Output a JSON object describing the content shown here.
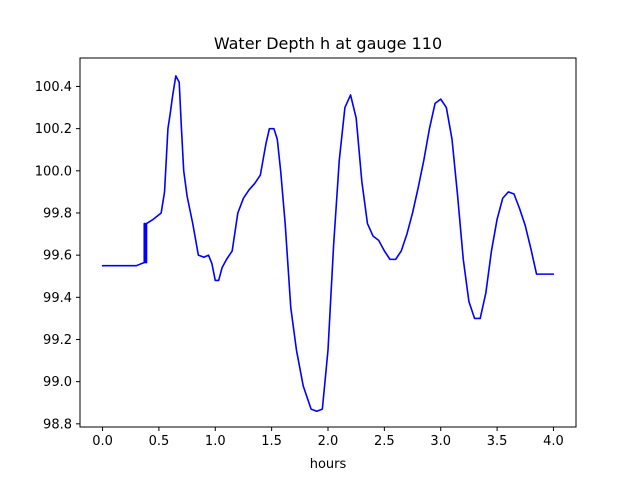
{
  "chart_data": {
    "type": "line",
    "title": "Water Depth h at gauge 110",
    "xlabel": "hours",
    "ylabel": "",
    "xlim": [
      -0.2,
      4.2
    ],
    "ylim": [
      98.785,
      100.535
    ],
    "xticks": [
      "0.0",
      "0.5",
      "1.0",
      "1.5",
      "2.0",
      "2.5",
      "3.0",
      "3.5",
      "4.0"
    ],
    "yticks": [
      "98.8",
      "99.0",
      "99.2",
      "99.4",
      "99.6",
      "99.8",
      "100.0",
      "100.2",
      "100.4"
    ],
    "grid": false,
    "legend": "none",
    "series": [
      {
        "color": "#0000ff",
        "x": [
          0.0,
          0.1,
          0.2,
          0.3,
          0.37,
          0.37,
          0.375,
          0.375,
          0.38,
          0.38,
          0.385,
          0.385,
          0.39,
          0.39,
          0.45,
          0.52,
          0.55,
          0.58,
          0.6,
          0.62,
          0.65,
          0.68,
          0.7,
          0.72,
          0.75,
          0.8,
          0.85,
          0.9,
          0.94,
          0.97,
          1.0,
          1.03,
          1.06,
          1.1,
          1.15,
          1.2,
          1.25,
          1.3,
          1.35,
          1.4,
          1.45,
          1.48,
          1.52,
          1.55,
          1.58,
          1.62,
          1.67,
          1.72,
          1.78,
          1.85,
          1.9,
          1.95,
          2.0,
          2.05,
          2.1,
          2.15,
          2.2,
          2.25,
          2.3,
          2.35,
          2.4,
          2.45,
          2.5,
          2.55,
          2.6,
          2.65,
          2.7,
          2.75,
          2.8,
          2.85,
          2.9,
          2.95,
          3.0,
          3.05,
          3.1,
          3.15,
          3.2,
          3.25,
          3.3,
          3.35,
          3.4,
          3.45,
          3.5,
          3.55,
          3.6,
          3.65,
          3.7,
          3.75,
          3.8,
          3.85,
          3.9,
          3.95,
          4.0
        ],
        "values": [
          99.55,
          99.55,
          99.55,
          99.55,
          99.565,
          99.75,
          99.565,
          99.75,
          99.565,
          99.75,
          99.565,
          99.75,
          99.565,
          99.75,
          99.77,
          99.8,
          99.9,
          100.2,
          100.27,
          100.35,
          100.45,
          100.42,
          100.2,
          100.0,
          99.88,
          99.75,
          99.6,
          99.59,
          99.6,
          99.56,
          99.48,
          99.48,
          99.54,
          99.58,
          99.62,
          99.8,
          99.87,
          99.91,
          99.94,
          99.98,
          100.13,
          100.2,
          100.2,
          100.15,
          100.0,
          99.75,
          99.35,
          99.15,
          98.98,
          98.87,
          98.86,
          98.87,
          99.15,
          99.65,
          100.05,
          100.3,
          100.36,
          100.25,
          99.95,
          99.75,
          99.69,
          99.67,
          99.62,
          99.58,
          99.58,
          99.62,
          99.7,
          99.8,
          99.92,
          100.05,
          100.2,
          100.32,
          100.34,
          100.3,
          100.15,
          99.88,
          99.58,
          99.38,
          99.3,
          99.3,
          99.42,
          99.62,
          99.77,
          99.87,
          99.9,
          99.89,
          99.82,
          99.74,
          99.63,
          99.51,
          99.51,
          99.51,
          99.51
        ]
      }
    ]
  }
}
